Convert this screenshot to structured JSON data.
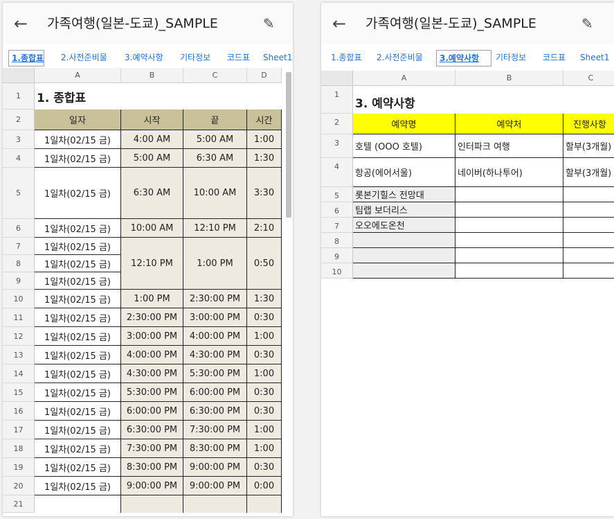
{
  "left": {
    "header": {
      "title": "가족여행(일본-도쿄)_SAMPLE"
    },
    "tabs": [
      "1.종합표",
      "2.사전준비물",
      "3.예약사항",
      "기타정보",
      "코드표",
      "Sheet1"
    ],
    "active_tab": "1.종합표",
    "columns": [
      "A",
      "B",
      "C",
      "D"
    ],
    "row_numbers": [
      "1",
      "2",
      "3",
      "4",
      "5",
      "6",
      "7",
      "8",
      "9",
      "10",
      "11",
      "12",
      "13",
      "14",
      "15",
      "16",
      "17",
      "18",
      "19",
      "20",
      "21"
    ],
    "sheet_title": "1. 종합표",
    "table_headers": [
      "일자",
      "시작",
      "끝",
      "시간"
    ],
    "rows": [
      {
        "date": "1일차(02/15 금)",
        "start": "4:00 AM",
        "end": "5:00 AM",
        "time": "1:00"
      },
      {
        "date": "1일차(02/15 금)",
        "start": "5:00 AM",
        "end": "6:30 AM",
        "time": "1:30"
      },
      {
        "date": "1일차(02/15 금)",
        "start": "6:30 AM",
        "end": "10:00 AM",
        "time": "3:30"
      },
      {
        "date": "1일차(02/15 금)",
        "start": "10:00 AM",
        "end": "12:10 PM",
        "time": "2:10"
      },
      {
        "date": "1일차(02/15 금)",
        "start": "12:10 PM",
        "end": "1:00 PM",
        "time": "0:50"
      },
      {
        "date": "1일차(02/15 금)"
      },
      {
        "date": "1일차(02/15 금)"
      },
      {
        "date": "1일차(02/15 금)",
        "start": "1:00 PM",
        "end": "2:30:00 PM",
        "time": "1:30"
      },
      {
        "date": "1일차(02/15 금)",
        "start": "2:30:00 PM",
        "end": "3:00:00 PM",
        "time": "0:30"
      },
      {
        "date": "1일차(02/15 금)",
        "start": "3:00:00 PM",
        "end": "4:00:00 PM",
        "time": "1:00"
      },
      {
        "date": "1일차(02/15 금)",
        "start": "4:00:00 PM",
        "end": "4:30:00 PM",
        "time": "0:30"
      },
      {
        "date": "1일차(02/15 금)",
        "start": "4:30:00 PM",
        "end": "5:30:00 PM",
        "time": "1:00"
      },
      {
        "date": "1일차(02/15 금)",
        "start": "5:30:00 PM",
        "end": "6:00:00 PM",
        "time": "0:30"
      },
      {
        "date": "1일차(02/15 금)",
        "start": "6:00:00 PM",
        "end": "6:30:00 PM",
        "time": "0:30"
      },
      {
        "date": "1일차(02/15 금)",
        "start": "6:30:00 PM",
        "end": "7:30:00 PM",
        "time": "1:00"
      },
      {
        "date": "1일차(02/15 금)",
        "start": "7:30:00 PM",
        "end": "8:30:00 PM",
        "time": "1:00"
      },
      {
        "date": "1일차(02/15 금)",
        "start": "8:30:00 PM",
        "end": "9:00:00 PM",
        "time": "0:30"
      },
      {
        "date": "1일차(02/15 금)",
        "start": "9:00:00 PM",
        "end": "9:00:00 PM",
        "time": "0:00"
      }
    ]
  },
  "right": {
    "header": {
      "title": "가족여행(일본-도쿄)_SAMPLE"
    },
    "tabs": [
      "1.종합표",
      "2.사전준비물",
      "3.예약사항",
      "기타정보",
      "코드표",
      "Sheet1"
    ],
    "active_tab": "3.예약사항",
    "columns": [
      "A",
      "B",
      "C"
    ],
    "row_numbers": [
      "1",
      "2",
      "3",
      "4",
      "5",
      "6",
      "7",
      "8",
      "9",
      "10"
    ],
    "sheet_title": "3. 예약사항",
    "table_headers": [
      "예약명",
      "예약처",
      "진행사항"
    ],
    "rows": [
      {
        "name": "호텔 (OOO 호텔)",
        "place": "인터파크 여행",
        "status": "할부(3개월)"
      },
      {
        "name": "항공(에어서울)",
        "place": "네이버(하나투어)",
        "status": "할부(3개월)"
      },
      {
        "name": "롯본기힐스 전망대",
        "place": "",
        "status": ""
      },
      {
        "name": "팀랩 보더리스",
        "place": "",
        "status": ""
      },
      {
        "name": "오오에도온천",
        "place": "",
        "status": ""
      },
      {
        "name": "",
        "place": "",
        "status": ""
      },
      {
        "name": "",
        "place": "",
        "status": ""
      },
      {
        "name": "",
        "place": "",
        "status": ""
      }
    ]
  },
  "colors": {
    "header_tan": "#c9c19a",
    "cell_tan": "#eeeae0",
    "highlight": "#ffff00",
    "link": "#1a73e8"
  }
}
